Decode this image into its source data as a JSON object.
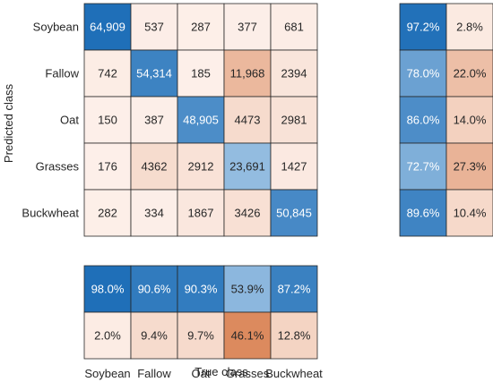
{
  "chart_data": {
    "type": "heatmap",
    "xlabel": "True class",
    "ylabel": "Predicted class",
    "classes": [
      "Soybean",
      "Fallow",
      "Oat",
      "Grasses",
      "Buckwheat"
    ],
    "matrix": [
      [
        64909,
        537,
        287,
        377,
        681
      ],
      [
        742,
        54314,
        185,
        11968,
        2394
      ],
      [
        150,
        387,
        48905,
        4473,
        2981
      ],
      [
        176,
        4362,
        2912,
        23691,
        1427
      ],
      [
        282,
        334,
        1867,
        3426,
        50845
      ]
    ],
    "matrix_labels": [
      [
        "64,909",
        "537",
        "287",
        "377",
        "681"
      ],
      [
        "742",
        "54,314",
        "185",
        "11,968",
        "2394"
      ],
      [
        "150",
        "387",
        "48,905",
        "4473",
        "2981"
      ],
      [
        "176",
        "4362",
        "2912",
        "23,691",
        "1427"
      ],
      [
        "282",
        "334",
        "1867",
        "3426",
        "50,845"
      ]
    ],
    "row_summary": [
      [
        "97.2%",
        "2.8%"
      ],
      [
        "78.0%",
        "22.0%"
      ],
      [
        "86.0%",
        "14.0%"
      ],
      [
        "72.7%",
        "27.3%"
      ],
      [
        "89.6%",
        "10.4%"
      ]
    ],
    "column_summary": [
      [
        "98.0%",
        "90.6%",
        "90.3%",
        "53.9%",
        "87.2%"
      ],
      [
        "2.0%",
        "9.4%",
        "9.7%",
        "46.1%",
        "12.8%"
      ]
    ],
    "colors": {
      "correct_strong": "#1f6fb8",
      "correct_light": "#d6e8f7",
      "incorrect_strong": "#dc8a5e",
      "incorrect_light": "#fdf0ea"
    }
  }
}
